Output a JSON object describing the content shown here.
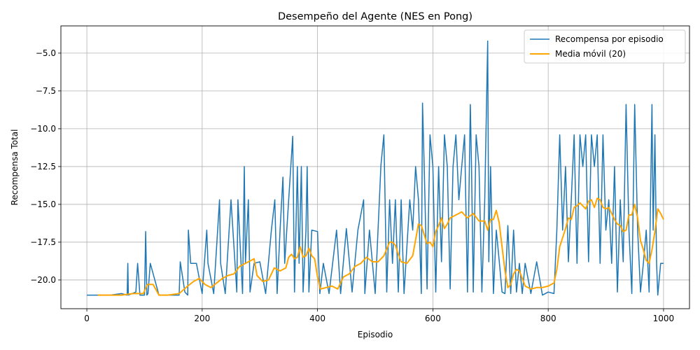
{
  "chart_data": {
    "type": "line",
    "title": "Desempeño del Agente (NES en Pong)",
    "xlabel": "Episodio",
    "ylabel": "Recompensa Total",
    "xlim": [
      -45,
      1045
    ],
    "ylim": [
      -21.9,
      -3.2
    ],
    "xticks": [
      0,
      200,
      400,
      600,
      800,
      1000
    ],
    "yticks": [
      -20.0,
      -17.5,
      -15.0,
      -12.5,
      -10.0,
      -7.5,
      -5.0
    ],
    "ytick_labels": [
      "−20.0",
      "−17.5",
      "−15.0",
      "−12.5",
      "−10.0",
      "−7.5",
      "−5.0"
    ],
    "grid": true,
    "legend_position": "top-right",
    "series": [
      {
        "name": "Recompensa por episodio",
        "color": "#1f77b4",
        "x": [
          0,
          20,
          40,
          60,
          70,
          71,
          72,
          85,
          88,
          92,
          100,
          102,
          104,
          106,
          110,
          125,
          140,
          160,
          162,
          170,
          175,
          176,
          180,
          190,
          200,
          208,
          210,
          220,
          230,
          232,
          240,
          250,
          260,
          262,
          270,
          273,
          275,
          280,
          283,
          290,
          300,
          310,
          320,
          326,
          330,
          335,
          340,
          343,
          350,
          357,
          360,
          365,
          368,
          372,
          375,
          380,
          382,
          385,
          390,
          400,
          404,
          410,
          420,
          433,
          440,
          450,
          460,
          470,
          480,
          482,
          490,
          500,
          510,
          515,
          520,
          525,
          530,
          535,
          540,
          545,
          550,
          560,
          565,
          570,
          575,
          580,
          582,
          585,
          590,
          595,
          600,
          605,
          610,
          615,
          620,
          625,
          630,
          635,
          640,
          645,
          650,
          655,
          660,
          665,
          667,
          670,
          675,
          680,
          685,
          690,
          695,
          697,
          700,
          705,
          710,
          715,
          720,
          725,
          730,
          735,
          740,
          745,
          750,
          755,
          760,
          770,
          780,
          790,
          800,
          810,
          815,
          820,
          825,
          830,
          835,
          840,
          845,
          850,
          855,
          860,
          865,
          870,
          875,
          880,
          885,
          890,
          895,
          900,
          905,
          910,
          915,
          920,
          925,
          930,
          935,
          940,
          945,
          950,
          955,
          960,
          965,
          970,
          975,
          980,
          982,
          985,
          988,
          990,
          995,
          1000
        ],
        "y": [
          -21,
          -21,
          -21,
          -20.9,
          -21,
          -18.9,
          -21,
          -20.8,
          -18.9,
          -21,
          -21,
          -16.8,
          -21,
          -20.9,
          -18.9,
          -21,
          -21,
          -21,
          -18.8,
          -20.8,
          -21,
          -16.7,
          -18.9,
          -18.9,
          -20.9,
          -16.7,
          -18.9,
          -20.9,
          -14.7,
          -18.9,
          -20.9,
          -14.7,
          -20.8,
          -14.7,
          -20.9,
          -12.5,
          -18.9,
          -14.7,
          -20.8,
          -18.9,
          -18.8,
          -20.9,
          -16.7,
          -14.7,
          -20.9,
          -16.7,
          -13.2,
          -18.9,
          -14.7,
          -10.5,
          -20.8,
          -12.5,
          -18.9,
          -12.5,
          -20.8,
          -16.7,
          -12.5,
          -20.8,
          -16.7,
          -16.8,
          -20.9,
          -18.9,
          -20.9,
          -16.7,
          -20.9,
          -16.6,
          -20.8,
          -16.7,
          -14.7,
          -20.9,
          -16.7,
          -20.9,
          -12.4,
          -10.4,
          -20.8,
          -14.7,
          -18.9,
          -14.7,
          -20.8,
          -14.7,
          -20.9,
          -14.7,
          -16.7,
          -12.5,
          -14.7,
          -20.9,
          -8.3,
          -12.5,
          -20.6,
          -10.4,
          -12.5,
          -20.8,
          -12.5,
          -18.8,
          -10.4,
          -12.5,
          -20.6,
          -12.5,
          -10.4,
          -14.7,
          -12.5,
          -10.4,
          -20.8,
          -8.4,
          -12.5,
          -20.8,
          -10.4,
          -12.5,
          -20.8,
          -14.7,
          -4.2,
          -18.8,
          -12.5,
          -20.9,
          -16.7,
          -18.7,
          -20.8,
          -20.9,
          -16.4,
          -20.9,
          -16.7,
          -20.8,
          -18.9,
          -20.9,
          -18.9,
          -20.9,
          -18.8,
          -21,
          -20.8,
          -20.9,
          -16.7,
          -10.4,
          -16.7,
          -12.5,
          -18.8,
          -14.7,
          -10.4,
          -18.9,
          -10.4,
          -12.5,
          -10.4,
          -18.8,
          -10.4,
          -12.5,
          -10.4,
          -18.9,
          -10.4,
          -16.7,
          -14.7,
          -18.9,
          -12.5,
          -20.8,
          -14.7,
          -18.8,
          -8.4,
          -16.7,
          -20.9,
          -8.4,
          -16.7,
          -20.8,
          -18.9,
          -16.7,
          -20.8,
          -8.4,
          -16.7,
          -10.4,
          -18.9,
          -21,
          -18.9,
          -18.9
        ]
      },
      {
        "name": "Media móvil (20)",
        "color": "#ffa500",
        "x": [
          19,
          40,
          60,
          80,
          98,
          105,
          115,
          125,
          140,
          160,
          175,
          185,
          195,
          205,
          215,
          225,
          235,
          245,
          255,
          265,
          275,
          285,
          290,
          295,
          305,
          315,
          325,
          335,
          345,
          350,
          355,
          360,
          365,
          370,
          375,
          380,
          385,
          390,
          395,
          400,
          405,
          415,
          425,
          435,
          445,
          455,
          465,
          475,
          485,
          495,
          505,
          515,
          525,
          530,
          535,
          540,
          545,
          555,
          565,
          575,
          580,
          585,
          590,
          595,
          600,
          605,
          610,
          615,
          620,
          625,
          630,
          640,
          650,
          660,
          670,
          680,
          690,
          695,
          700,
          705,
          710,
          715,
          720,
          725,
          730,
          735,
          740,
          745,
          750,
          760,
          770,
          780,
          790,
          800,
          810,
          815,
          820,
          825,
          830,
          835,
          840,
          845,
          850,
          855,
          860,
          865,
          870,
          875,
          880,
          885,
          890,
          895,
          900,
          905,
          910,
          915,
          920,
          925,
          930,
          935,
          940,
          945,
          950,
          955,
          960,
          965,
          970,
          975,
          980,
          985,
          990,
          995,
          1000
        ],
        "y": [
          -21,
          -21,
          -21,
          -20.9,
          -20.9,
          -20.3,
          -20.3,
          -21,
          -21,
          -20.9,
          -20.4,
          -20.1,
          -19.9,
          -20.3,
          -20.5,
          -20.2,
          -19.9,
          -19.7,
          -19.6,
          -19.1,
          -18.9,
          -18.7,
          -18.6,
          -19.7,
          -20.1,
          -20.0,
          -19.2,
          -19.4,
          -19.2,
          -18.5,
          -18.3,
          -18.6,
          -18.5,
          -17.8,
          -18.5,
          -18.4,
          -17.9,
          -18.4,
          -18.6,
          -19.8,
          -20.6,
          -20.5,
          -20.4,
          -20.6,
          -19.8,
          -19.6,
          -19.1,
          -18.9,
          -18.5,
          -18.8,
          -18.8,
          -18.4,
          -17.5,
          -17.5,
          -17.7,
          -18.3,
          -18.8,
          -18.9,
          -18.4,
          -16.3,
          -16.4,
          -17.0,
          -17.6,
          -17.5,
          -17.8,
          -16.8,
          -16.4,
          -15.9,
          -16.6,
          -16.3,
          -15.9,
          -15.7,
          -15.5,
          -15.9,
          -15.6,
          -16.1,
          -16.1,
          -16.7,
          -16.0,
          -16.0,
          -15.4,
          -16.2,
          -17.8,
          -19.4,
          -20.5,
          -20.3,
          -19.6,
          -19.3,
          -19.4,
          -20.4,
          -20.6,
          -20.5,
          -20.5,
          -20.4,
          -20.2,
          -19.3,
          -17.8,
          -17.2,
          -16.6,
          -15.9,
          -16.0,
          -15.2,
          -15.1,
          -14.9,
          -15.1,
          -15.3,
          -14.8,
          -14.7,
          -15.2,
          -14.6,
          -14.7,
          -15.2,
          -15.3,
          -15.2,
          -15.6,
          -16.0,
          -16.3,
          -16.4,
          -16.8,
          -16.7,
          -15.7,
          -15.7,
          -15.0,
          -15.9,
          -17.4,
          -18.0,
          -18.7,
          -18.9,
          -18.0,
          -16.8,
          -15.3,
          -15.6,
          -16.0
        ]
      }
    ]
  }
}
